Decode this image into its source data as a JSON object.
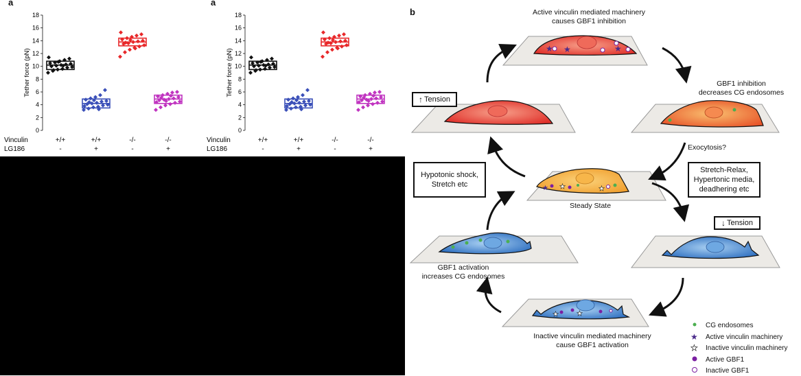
{
  "panel_letters": {
    "left1": "a",
    "left2": "a",
    "right": "b"
  },
  "chart_data": [
    {
      "type": "scatter",
      "ylabel": "Tether force (pN)",
      "ylim": [
        0,
        18
      ],
      "yticks": [
        0,
        2,
        4,
        6,
        8,
        10,
        12,
        14,
        16,
        18
      ],
      "row_labels": [
        "Vinculin",
        "LG186"
      ],
      "categories": [
        {
          "vinculin": "+/+",
          "lg186": "-",
          "color": "#111111",
          "median": 10.2,
          "box": [
            9.5,
            10.8
          ],
          "points": [
            9.0,
            9.3,
            9.5,
            9.6,
            9.8,
            9.9,
            10.0,
            10.1,
            10.2,
            10.3,
            10.4,
            10.5,
            10.6,
            10.8,
            11.0,
            11.2,
            11.4,
            9.4,
            10.7,
            10.1
          ]
        },
        {
          "vinculin": "+/+",
          "lg186": "+",
          "color": "#3a4fb8",
          "median": 4.2,
          "box": [
            3.5,
            4.9
          ],
          "points": [
            3.2,
            3.4,
            3.6,
            3.7,
            3.9,
            4.0,
            4.1,
            4.2,
            4.3,
            4.5,
            4.6,
            4.8,
            5.0,
            5.2,
            5.5,
            6.3,
            3.8,
            4.4,
            4.7,
            3.3
          ]
        },
        {
          "vinculin": "-/-",
          "lg186": "-",
          "color": "#e8282a",
          "median": 13.8,
          "box": [
            13.2,
            14.4
          ],
          "points": [
            11.5,
            12.2,
            12.6,
            12.9,
            13.1,
            13.3,
            13.5,
            13.6,
            13.8,
            13.9,
            14.0,
            14.2,
            14.4,
            14.6,
            14.8,
            15.0,
            15.3,
            13.7,
            14.1,
            12.8
          ]
        },
        {
          "vinculin": "-/-",
          "lg186": "+",
          "color": "#c034c0",
          "median": 4.9,
          "box": [
            4.2,
            5.5
          ],
          "points": [
            3.2,
            3.6,
            3.9,
            4.1,
            4.3,
            4.5,
            4.7,
            4.8,
            4.9,
            5.0,
            5.2,
            5.3,
            5.5,
            5.7,
            5.9,
            6.0,
            4.4,
            5.1,
            4.6,
            5.4
          ]
        }
      ]
    },
    {
      "type": "scatter",
      "ylabel": "Tether force (pN)",
      "ylim": [
        0,
        18
      ],
      "yticks": [
        0,
        2,
        4,
        6,
        8,
        10,
        12,
        14,
        16,
        18
      ],
      "row_labels": [
        "Vinculin",
        "LG186"
      ],
      "categories": [
        {
          "vinculin": "+/+",
          "lg186": "-",
          "color": "#111111",
          "median": 10.2,
          "box": [
            9.5,
            10.8
          ],
          "points": [
            9.0,
            9.3,
            9.5,
            9.6,
            9.8,
            9.9,
            10.0,
            10.1,
            10.2,
            10.3,
            10.4,
            10.5,
            10.6,
            10.8,
            11.0,
            11.2,
            11.4,
            9.4,
            10.7,
            10.1
          ]
        },
        {
          "vinculin": "+/+",
          "lg186": "+",
          "color": "#3a4fb8",
          "median": 4.2,
          "box": [
            3.5,
            4.9
          ],
          "points": [
            3.2,
            3.4,
            3.6,
            3.7,
            3.9,
            4.0,
            4.1,
            4.2,
            4.3,
            4.5,
            4.6,
            4.8,
            5.0,
            5.2,
            5.5,
            6.3,
            3.8,
            4.4,
            4.7,
            3.3
          ]
        },
        {
          "vinculin": "-/-",
          "lg186": "-",
          "color": "#e8282a",
          "median": 13.8,
          "box": [
            13.2,
            14.4
          ],
          "points": [
            11.5,
            12.2,
            12.6,
            12.9,
            13.1,
            13.3,
            13.5,
            13.6,
            13.8,
            13.9,
            14.0,
            14.2,
            14.4,
            14.6,
            14.8,
            15.0,
            15.3,
            13.7,
            14.1,
            12.8
          ]
        },
        {
          "vinculin": "-/-",
          "lg186": "+",
          "color": "#c034c0",
          "median": 4.9,
          "box": [
            4.2,
            5.5
          ],
          "points": [
            3.2,
            3.6,
            3.9,
            4.1,
            4.3,
            4.5,
            4.7,
            4.8,
            4.9,
            5.0,
            5.2,
            5.3,
            5.5,
            5.7,
            5.9,
            6.0,
            4.4,
            5.1,
            4.6,
            5.4
          ]
        }
      ]
    }
  ],
  "diagram": {
    "top_caption": "Active vinculin mediated machinery\ncauses GBF1 inhibition",
    "right_upper_caption": "GBF1 inhibition\ndecreases CG endosomes",
    "exocytosis": "Exocytosis?",
    "tension_up": "Tension",
    "tension_down": "Tension",
    "hypotonic_box": "Hypotonic shock,\nStretch etc",
    "stretch_box": "Stretch-Relax,\nHypertonic media,\ndeadhering etc",
    "steady_state": "Steady State",
    "left_lower_caption": "GBF1 activation\nincreases CG endosomes",
    "bottom_caption": "Inactive vinculin mediated machinery\ncause GBF1 activation",
    "legend": [
      {
        "icon": "cg-endosome",
        "label": "CG endosomes",
        "color": "#4caf50"
      },
      {
        "icon": "active-vinculin",
        "label": "Active vinculin machinery",
        "color": "#4a2a8a"
      },
      {
        "icon": "inactive-vinculin",
        "label": "Inactive vinculin machinery",
        "color": "#ffffff"
      },
      {
        "icon": "active-gbf1",
        "label": "Active GBF1",
        "color": "#7b1fa2"
      },
      {
        "icon": "inactive-gbf1",
        "label": "Inactive GBF1",
        "color": "#ffffff"
      }
    ]
  }
}
